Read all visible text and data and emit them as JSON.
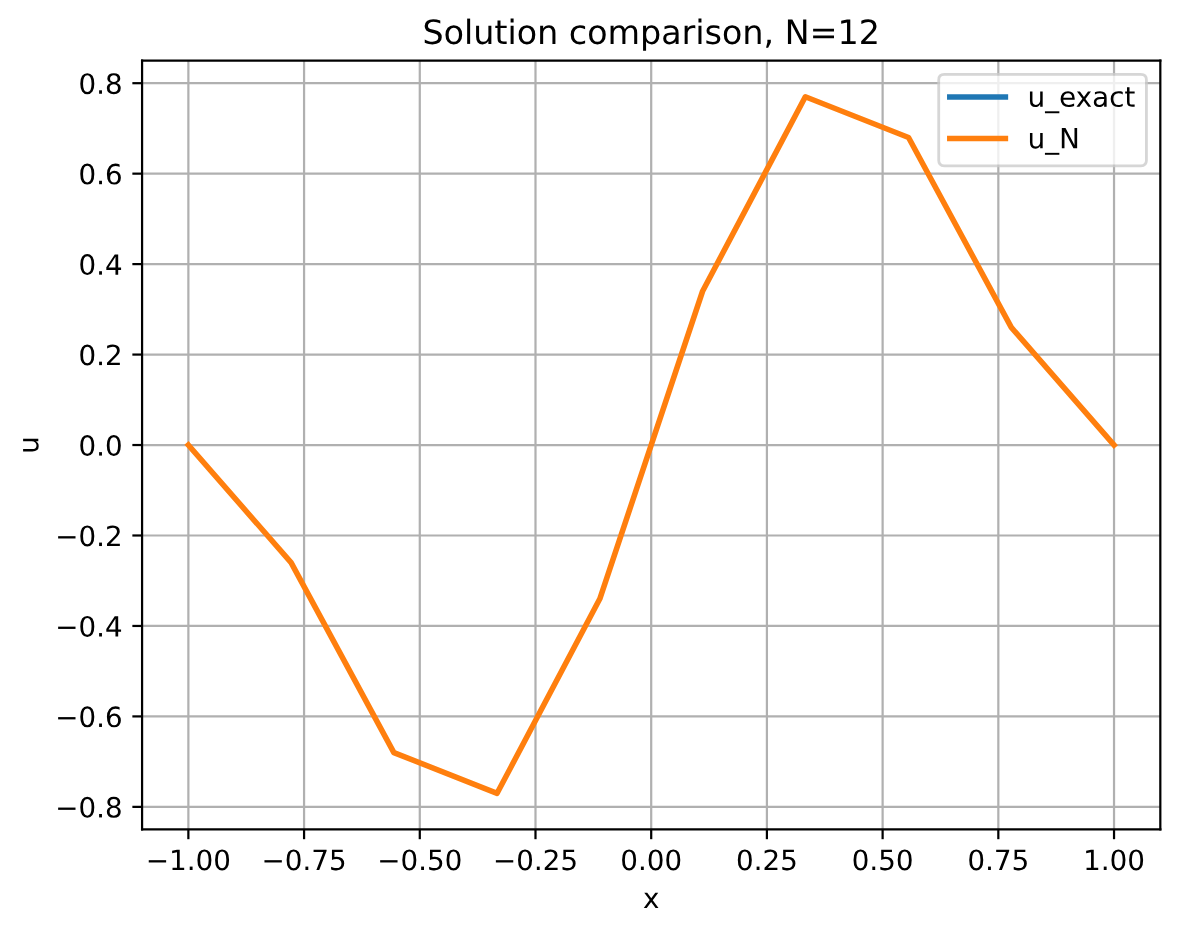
{
  "chart_data": {
    "type": "line",
    "title": "Solution comparison, N=12",
    "xlabel": "x",
    "ylabel": "u",
    "x": [
      -1.0,
      -0.778,
      -0.556,
      -0.333,
      -0.111,
      0.111,
      0.333,
      0.556,
      0.778,
      1.0
    ],
    "series": [
      {
        "name": "u_exact",
        "color": "#1f77b4",
        "values": [
          null,
          null,
          null,
          null,
          null,
          null,
          null,
          null,
          null,
          null
        ]
      },
      {
        "name": "u_N",
        "color": "#ff7f0e",
        "values": [
          0.0,
          -0.26,
          -0.68,
          -0.77,
          -0.34,
          0.34,
          0.77,
          0.68,
          0.26,
          0.0
        ]
      }
    ],
    "xlim": [
      -1.1,
      1.1
    ],
    "ylim": [
      -0.85,
      0.85
    ],
    "xticks": [
      {
        "value": -1.0,
        "label": "−1.00"
      },
      {
        "value": -0.75,
        "label": "−0.75"
      },
      {
        "value": -0.5,
        "label": "−0.50"
      },
      {
        "value": -0.25,
        "label": "−0.25"
      },
      {
        "value": 0.0,
        "label": "0.00"
      },
      {
        "value": 0.25,
        "label": "0.25"
      },
      {
        "value": 0.5,
        "label": "0.50"
      },
      {
        "value": 0.75,
        "label": "0.75"
      },
      {
        "value": 1.0,
        "label": "1.00"
      }
    ],
    "yticks": [
      {
        "value": -0.8,
        "label": "−0.8"
      },
      {
        "value": -0.6,
        "label": "−0.6"
      },
      {
        "value": -0.4,
        "label": "−0.4"
      },
      {
        "value": -0.2,
        "label": "−0.2"
      },
      {
        "value": 0.0,
        "label": "0.0"
      },
      {
        "value": 0.2,
        "label": "0.2"
      },
      {
        "value": 0.4,
        "label": "0.4"
      },
      {
        "value": 0.6,
        "label": "0.6"
      },
      {
        "value": 0.8,
        "label": "0.8"
      }
    ],
    "grid": true,
    "legend": "top right"
  }
}
